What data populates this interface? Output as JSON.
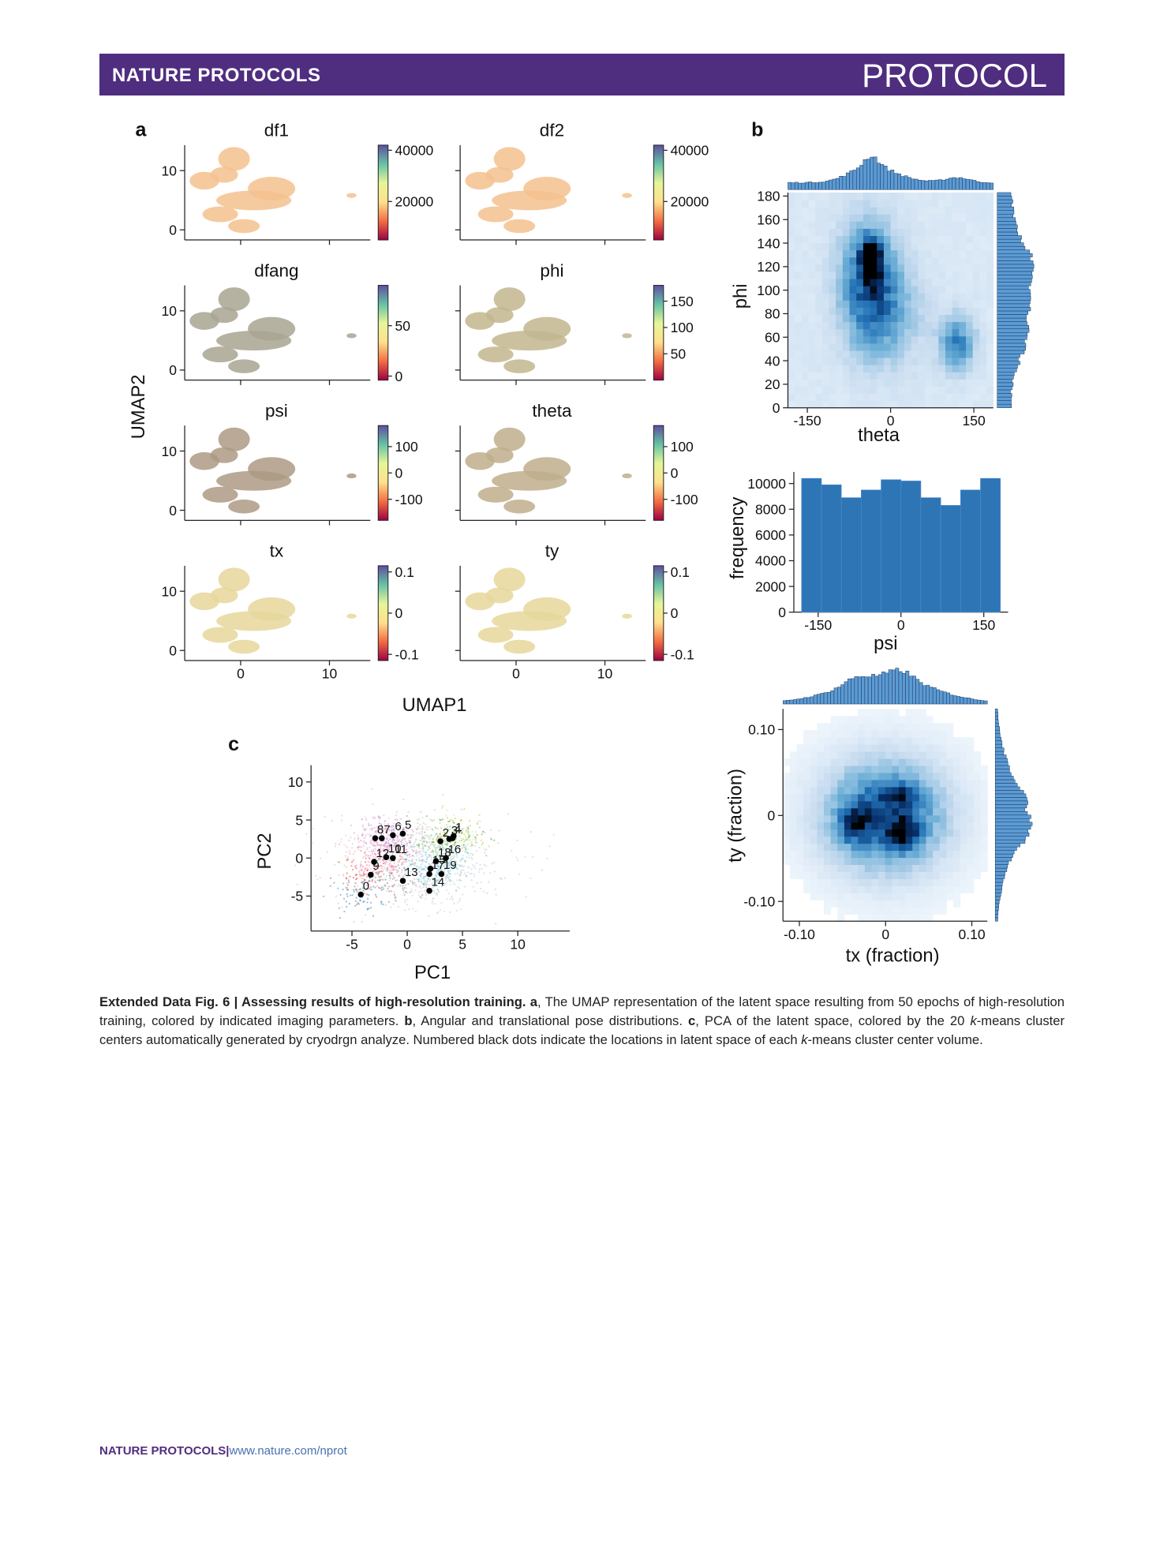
{
  "header": {
    "journal": "NATURE PROTOCOLS",
    "section": "PROTOCOL"
  },
  "figure": {
    "panel_labels": [
      "a",
      "b",
      "c"
    ],
    "umap": {
      "x_label": "UMAP1",
      "y_label": "UMAP2",
      "xlim": [
        -6.3,
        14.6
      ],
      "ylim": [
        -1.7,
        14.3
      ],
      "xticks": [
        0,
        10
      ],
      "yticks": [
        0,
        10
      ],
      "panels": [
        {
          "title": "df1",
          "color": "#f5c18e",
          "colorbar_lim": [
            5000,
            42000
          ],
          "colorbar_ticks": [
            40000,
            20000
          ]
        },
        {
          "title": "df2",
          "color": "#f5c18e",
          "colorbar_lim": [
            5000,
            42000
          ],
          "colorbar_ticks": [
            40000,
            20000
          ]
        },
        {
          "title": "dfang",
          "color": "#a8a592",
          "colorbar_lim": [
            -4,
            90
          ],
          "colorbar_ticks": [
            50,
            0
          ]
        },
        {
          "title": "phi",
          "color": "#c2b68e",
          "colorbar_lim": [
            0,
            180
          ],
          "colorbar_ticks": [
            150,
            100,
            50
          ]
        },
        {
          "title": "psi",
          "color": "#ad9a84",
          "colorbar_lim": [
            -180,
            180
          ],
          "colorbar_ticks": [
            100,
            0,
            -100
          ]
        },
        {
          "title": "theta",
          "color": "#bfae8c",
          "colorbar_lim": [
            -180,
            180
          ],
          "colorbar_ticks": [
            100,
            0,
            -100
          ]
        },
        {
          "title": "tx",
          "color": "#e6d79b",
          "colorbar_lim": [
            -0.115,
            0.115
          ],
          "colorbar_ticks": [
            0.1,
            0,
            -0.1
          ]
        },
        {
          "title": "ty",
          "color": "#e6d79b",
          "colorbar_lim": [
            -0.115,
            0.115
          ],
          "colorbar_ticks": [
            0.1,
            0,
            -0.1
          ]
        }
      ]
    },
    "theta_phi": {
      "x_label": "theta",
      "y_label": "phi",
      "xlim": [
        -185,
        185
      ],
      "ylim": [
        0,
        183
      ],
      "xticks": [
        -150,
        0,
        150
      ],
      "yticks": [
        0,
        20,
        40,
        60,
        80,
        100,
        120,
        140,
        160,
        180
      ],
      "density_base": 0.12,
      "density_peaks": [
        {
          "x": -35,
          "y": 125,
          "w": 1.0,
          "sx": 12,
          "sy": 12
        },
        {
          "x": -40,
          "y": 110,
          "w": 0.45,
          "sx": 35,
          "sy": 35
        },
        {
          "x": 120,
          "y": 55,
          "w": 0.4,
          "sx": 22,
          "sy": 16
        },
        {
          "x": -10,
          "y": 80,
          "w": 0.25,
          "sx": 45,
          "sy": 30
        }
      ]
    },
    "psi_hist": {
      "type": "histogram",
      "x_label": "psi",
      "y_label": "frequency",
      "bins": [
        -180,
        -144,
        -108,
        -72,
        -36,
        0,
        36,
        72,
        108,
        144,
        180
      ],
      "values": [
        10400,
        9900,
        8900,
        9500,
        10300,
        10200,
        8900,
        8300,
        9500,
        10400
      ],
      "color": "#2e75b6",
      "xlim": [
        -194,
        194
      ],
      "ylim": [
        0,
        10900
      ],
      "xticks": [
        -150,
        0,
        150
      ],
      "yticks": [
        0,
        2000,
        4000,
        6000,
        8000,
        10000
      ]
    },
    "tx_ty": {
      "x_label": "tx (fraction)",
      "y_label": "ty (fraction)",
      "xlim": [
        -0.119,
        0.118
      ],
      "ylim": [
        -0.123,
        0.124
      ],
      "xticks": [
        {
          "value": -0.1,
          "label": "-0.10"
        },
        0,
        {
          "value": 0.1,
          "label": "0.10"
        }
      ],
      "yticks": [
        {
          "value": -0.1,
          "label": "-0.10"
        },
        0,
        {
          "value": 0.1,
          "label": "0.10"
        }
      ],
      "density_base": 0,
      "density_peaks": [
        {
          "x": 0,
          "y": 0,
          "w": 0.55,
          "sx": 0.045,
          "sy": 0.04
        },
        {
          "x": 0,
          "y": 0,
          "w": 0.15,
          "sx": 0.075,
          "sy": 0.075
        },
        {
          "x": 0.02,
          "y": -0.02,
          "w": 0.5,
          "sx": 0.012,
          "sy": 0.012
        },
        {
          "x": -0.035,
          "y": -0.01,
          "w": 0.4,
          "sx": 0.012,
          "sy": 0.015
        },
        {
          "x": 0.015,
          "y": 0.025,
          "w": 0.3,
          "sx": 0.015,
          "sy": 0.01
        }
      ]
    },
    "pca": {
      "x_label": "PC1",
      "y_label": "PC2",
      "xlim": [
        -8.7,
        14.7
      ],
      "ylim": [
        -9.6,
        12.2
      ],
      "xticks": [
        -5,
        0,
        5,
        10
      ],
      "yticks": [
        -5,
        0,
        5,
        10
      ],
      "cluster_colors": [
        "#1f77b4",
        "#bcbd22",
        "#98df8a",
        "#2ca02c",
        "#dbdb8d",
        "#c5b0d5",
        "#9467bd",
        "#e377c2",
        "#f7b6d2",
        "#d62728",
        "#e377c2",
        "#ff7fbf",
        "#ff9896",
        "#7f7f7f",
        "#c7c7c7",
        "#17becf",
        "#9edae5",
        "#c7c7c7",
        "#aec7e8",
        "#9edae5"
      ],
      "centers": [
        {
          "label": "0",
          "x": -4.2,
          "y": -4.8
        },
        {
          "label": "1",
          "x": 4.2,
          "y": 2.9
        },
        {
          "label": "2",
          "x": 3.0,
          "y": 2.2
        },
        {
          "label": "3",
          "x": 3.8,
          "y": 2.5
        },
        {
          "label": "4",
          "x": 4.1,
          "y": 2.6
        },
        {
          "label": "5",
          "x": -0.4,
          "y": 3.2
        },
        {
          "label": "6",
          "x": -1.3,
          "y": 3.0
        },
        {
          "label": "7",
          "x": -2.3,
          "y": 2.6
        },
        {
          "label": "8",
          "x": -2.9,
          "y": 2.6
        },
        {
          "label": "9",
          "x": -3.3,
          "y": -2.2
        },
        {
          "label": "10",
          "x": -1.9,
          "y": 0.1
        },
        {
          "label": "11",
          "x": -1.3,
          "y": 0
        },
        {
          "label": "12",
          "x": -3.0,
          "y": -0.5
        },
        {
          "label": "13",
          "x": -0.4,
          "y": -3.0
        },
        {
          "label": "14",
          "x": 2.0,
          "y": -4.3
        },
        {
          "label": "15",
          "x": 2.1,
          "y": -1.4
        },
        {
          "label": "16",
          "x": 3.5,
          "y": 0
        },
        {
          "label": "17",
          "x": 2.0,
          "y": -2.1
        },
        {
          "label": "18",
          "x": 2.6,
          "y": -0.4
        },
        {
          "label": "19",
          "x": 3.1,
          "y": -2.1
        }
      ]
    }
  },
  "caption": [
    {
      "text": "Extended Data Fig. 6 | Assessing results of high-resolution training. a",
      "style": "bold"
    },
    {
      "text": ", The UMAP representation of the latent space resulting from 50 epochs of high-resolution training, colored by indicated imaging parameters. ",
      "style": "normal"
    },
    {
      "text": "b",
      "style": "bold"
    },
    {
      "text": ", Angular and translational pose distributions. ",
      "style": "normal"
    },
    {
      "text": "c",
      "style": "bold"
    },
    {
      "text": ", PCA of the latent space, colored by the 20 ",
      "style": "normal"
    },
    {
      "text": "k",
      "style": "italic"
    },
    {
      "text": "-means cluster centers automatically generated by cryodrgn analyze. Numbered black dots indicate the locations in latent space of each ",
      "style": "normal"
    },
    {
      "text": "k",
      "style": "italic"
    },
    {
      "text": "-means cluster center volume.",
      "style": "normal"
    }
  ],
  "footer": {
    "journal": "NATURE PROTOCOLS",
    "separator": "|",
    "url": "www.nature.com/nprot"
  }
}
